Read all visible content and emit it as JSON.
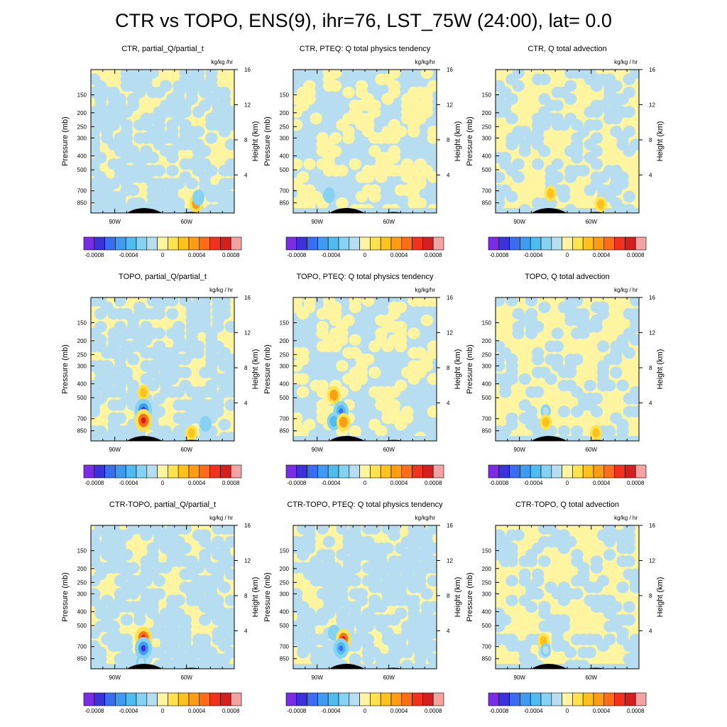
{
  "title": "CTR vs TOPO, ENS(9), ihr=76, LST_75W (24:00), lat=  0.0",
  "palette": [
    "#7a2ce6",
    "#3b32d9",
    "#3a6ef0",
    "#3f9bf2",
    "#4fbcf0",
    "#85d2f2",
    "#b7def0",
    "#fff5a0",
    "#ffe24d",
    "#ffc21c",
    "#ff9c14",
    "#ff6d19",
    "#f0321e",
    "#d3201e",
    "#f4a3a3"
  ],
  "colorbar_labels": [
    "-0.0008",
    "-0.0004",
    "0",
    "0.0004",
    "0.0008"
  ],
  "pressure_ticks": [
    "150",
    "200",
    "250",
    "300",
    "400",
    "500",
    "700",
    "850"
  ],
  "height_ticks": [
    "16",
    "12",
    "8",
    "4"
  ],
  "lon_ticks": [
    "90W",
    "60W"
  ],
  "ylabel_left": "Pressure (mb)",
  "ylabel_right": "Height (km)",
  "chart_data": [
    {
      "type": "heatmap",
      "title": "CTR, partial_Q/partial_t",
      "units": "kg/kg /hr",
      "pattern": "mixed",
      "features": [
        {
          "lon": -56,
          "p": 860,
          "value": 0.0003
        },
        {
          "lon": -55,
          "p": 780,
          "value": -0.0002
        }
      ],
      "clim": [
        -0.0008,
        0.0008
      ]
    },
    {
      "type": "heatmap",
      "title": "CTR, PTEQ: Q total physics tendency",
      "units": "kg/kg/hr",
      "pattern": "mostly_negative",
      "features": [
        {
          "lon": -85,
          "p": 750,
          "value": -0.0002
        }
      ],
      "clim": [
        -0.0008,
        0.0008
      ]
    },
    {
      "type": "heatmap",
      "title": "CTR, Q total advection",
      "units": "kg/kg / hr",
      "pattern": "mostly_positive",
      "features": [
        {
          "lon": -77,
          "p": 730,
          "value": 0.0002
        },
        {
          "lon": -56,
          "p": 870,
          "value": 0.0002
        }
      ],
      "clim": [
        -0.0008,
        0.0008
      ]
    },
    {
      "type": "heatmap",
      "title": "TOPO, partial_Q/partial_t",
      "units": "kg/kg / hr",
      "pattern": "mixed",
      "features": [
        {
          "lon": -78,
          "p": 460,
          "value": 0.0002
        },
        {
          "lon": -78,
          "p": 610,
          "value": -0.0005
        },
        {
          "lon": -78,
          "p": 720,
          "value": 0.0005
        },
        {
          "lon": -58,
          "p": 880,
          "value": 0.0002
        },
        {
          "lon": -52,
          "p": 760,
          "value": -0.0002
        }
      ],
      "clim": [
        -0.0008,
        0.0008
      ]
    },
    {
      "type": "heatmap",
      "title": "TOPO, PTEQ: Q total physics tendency",
      "units": "kg/kg/hr",
      "pattern": "mostly_negative",
      "features": [
        {
          "lon": -83,
          "p": 480,
          "value": 0.0003
        },
        {
          "lon": -80,
          "p": 620,
          "value": -0.0004
        },
        {
          "lon": -83,
          "p": 730,
          "value": -0.0003
        },
        {
          "lon": -79,
          "p": 740,
          "value": 0.0003
        }
      ],
      "clim": [
        -0.0008,
        0.0008
      ]
    },
    {
      "type": "heatmap",
      "title": "TOPO, Q total advection",
      "units": "kg/kg / hr",
      "pattern": "mostly_positive",
      "features": [
        {
          "lon": -79,
          "p": 620,
          "value": -0.0001
        },
        {
          "lon": -79,
          "p": 740,
          "value": 0.0002
        },
        {
          "lon": -58,
          "p": 880,
          "value": 0.0002
        }
      ],
      "clim": [
        -0.0008,
        0.0008
      ]
    },
    {
      "type": "heatmap",
      "title": "CTR-TOPO, partial_Q/partial_t",
      "units": "kg/kg / hr",
      "pattern": "mixed",
      "features": [
        {
          "lon": -78,
          "p": 610,
          "value": 0.0005
        },
        {
          "lon": -78,
          "p": 720,
          "value": -0.0005
        },
        {
          "lon": -79,
          "p": 900,
          "value": -0.0001
        }
      ],
      "clim": [
        -0.0008,
        0.0008
      ]
    },
    {
      "type": "heatmap",
      "title": "CTR-TOPO, PTEQ: Q total physics tendency",
      "units": "kg/kg/hr",
      "pattern": "mixed",
      "features": [
        {
          "lon": -83,
          "p": 560,
          "value": -0.0002
        },
        {
          "lon": -79,
          "p": 620,
          "value": 0.0004
        },
        {
          "lon": -80,
          "p": 720,
          "value": -0.0004
        }
      ],
      "clim": [
        -0.0008,
        0.0008
      ]
    },
    {
      "type": "heatmap",
      "title": "CTR-TOPO, Q total advection",
      "units": "kg/kg / hr",
      "pattern": "mostly_positive",
      "features": [
        {
          "lon": -80,
          "p": 640,
          "value": 0.0002
        },
        {
          "lon": -79,
          "p": 740,
          "value": -0.0001
        }
      ],
      "clim": [
        -0.0008,
        0.0008
      ]
    }
  ]
}
